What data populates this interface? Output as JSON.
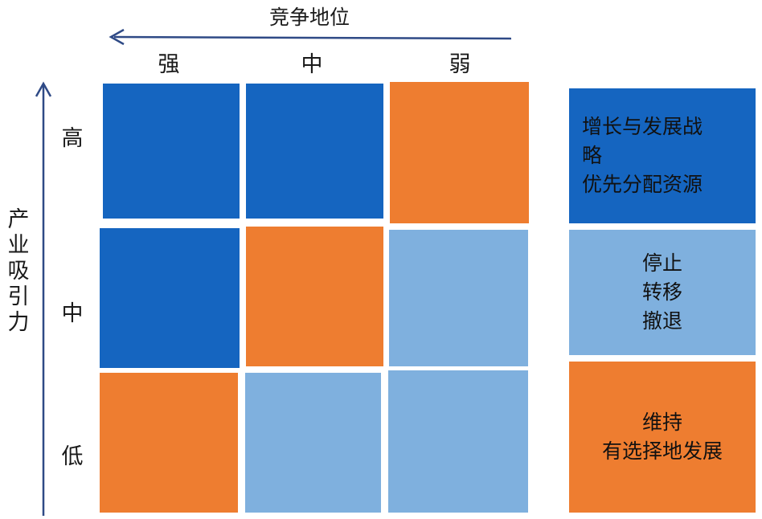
{
  "x_axis": {
    "title": "竞争地位",
    "columns": [
      "强",
      "中",
      "弱"
    ]
  },
  "y_axis": {
    "title": "产业吸引力",
    "rows": [
      "高",
      "中",
      "低"
    ]
  },
  "colors": {
    "dark_blue": "#1565c0",
    "light_blue": "#7fb0de",
    "orange": "#ee7d30",
    "axis": "#2f4a86"
  },
  "grid": [
    [
      "dark_blue",
      "dark_blue",
      "orange"
    ],
    [
      "dark_blue",
      "orange",
      "light_blue"
    ],
    [
      "orange",
      "light_blue",
      "light_blue"
    ]
  ],
  "legend": [
    {
      "color": "dark_blue",
      "text": "增长与发展战\n略\n优先分配资源"
    },
    {
      "color": "light_blue",
      "text": "停止\n转移\n撤退"
    },
    {
      "color": "orange",
      "text": "维持\n有选择地发展"
    }
  ]
}
